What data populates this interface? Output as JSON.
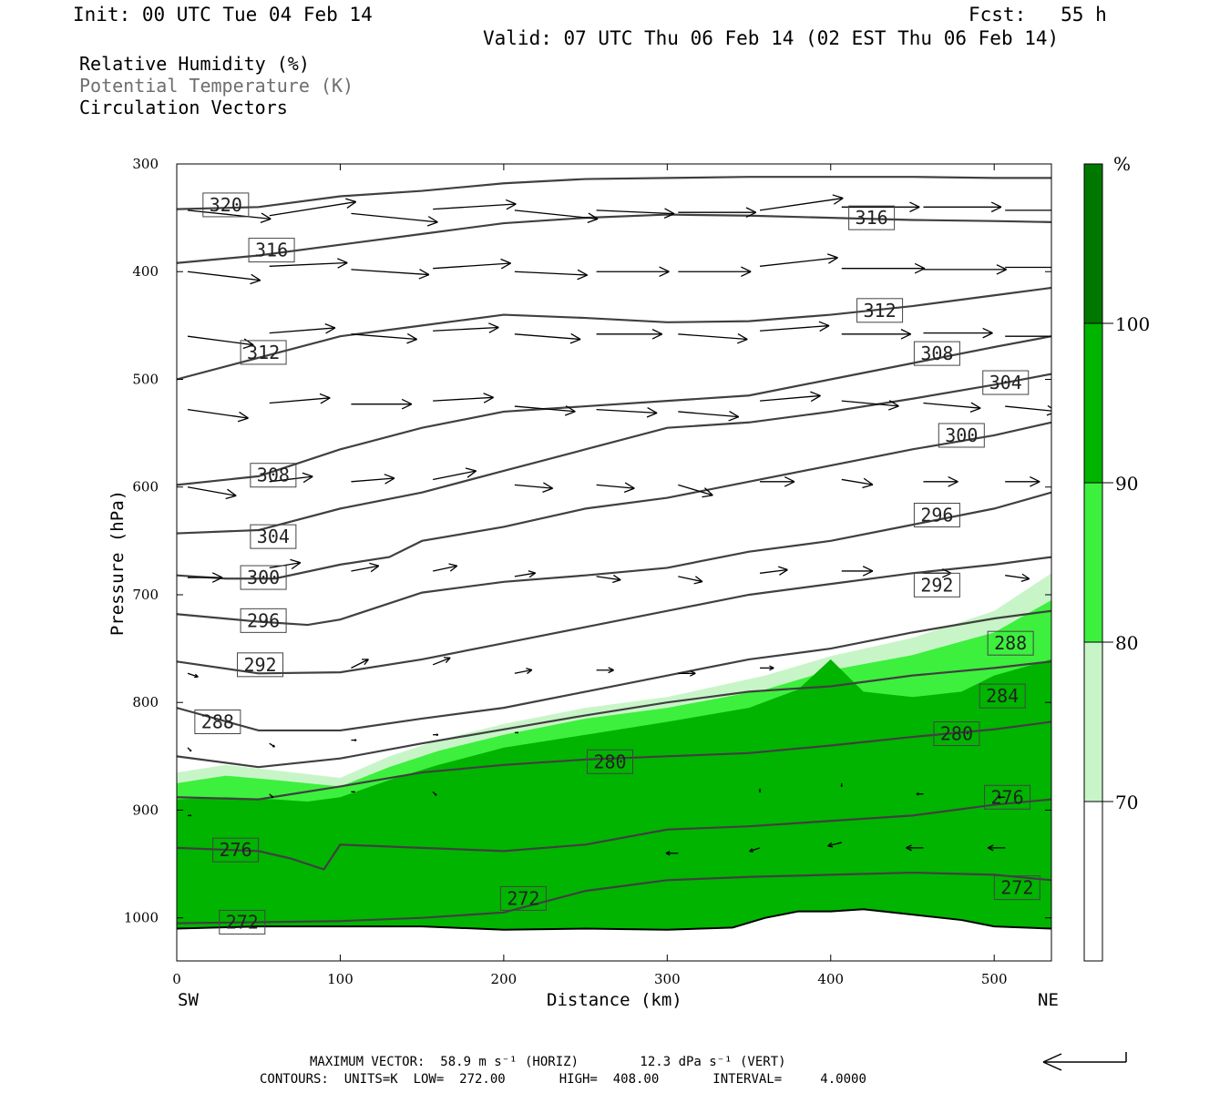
{
  "header": {
    "init": "Init: 00 UTC Tue 04 Feb 14",
    "fcst": "Fcst:   55 h",
    "valid": "Valid: 07 UTC Thu 06 Feb 14 (02 EST Thu 06 Feb 14)"
  },
  "legend": {
    "rh": "Relative Humidity (%)",
    "theta": "Potential Temperature (K)",
    "vectors": "Circulation Vectors"
  },
  "footer": {
    "max_vector": "MAXIMUM VECTOR:  58.9 m s⁻¹ (HORIZ)        12.3 dPa s⁻¹ (VERT)",
    "contours": "CONTOURS:  UNITS=K  LOW=  272.00       HIGH=  408.00       INTERVAL=     4.0000"
  },
  "colors": {
    "rh_70": "#c8f5c8",
    "rh_80": "#3df03d",
    "rh_90": "#00b400",
    "rh_100": "#007800",
    "contour": "#404040"
  },
  "chart_data": {
    "type": "cross-section",
    "xlabel": "Distance (km)",
    "ylabel": "Pressure (hPa)",
    "x_left_label": "SW",
    "x_right_label": "NE",
    "xlim": [
      0,
      535
    ],
    "ylim": [
      1040,
      300
    ],
    "x_ticks": [
      0,
      100,
      200,
      300,
      400,
      500
    ],
    "y_ticks": [
      300,
      400,
      500,
      600,
      700,
      800,
      900,
      1000
    ],
    "colorbar": {
      "unit": "%",
      "levels": [
        70,
        80,
        90,
        100
      ],
      "labels": [
        "100",
        "90",
        "80",
        "70"
      ]
    },
    "ground": {
      "x": [
        0,
        50,
        100,
        150,
        200,
        250,
        300,
        340,
        360,
        380,
        400,
        420,
        450,
        480,
        500,
        535
      ],
      "p": [
        1010,
        1008,
        1008,
        1008,
        1011,
        1010,
        1011,
        1009,
        1000,
        994,
        994,
        992,
        997,
        1002,
        1008,
        1010
      ]
    },
    "rh_regions": [
      {
        "level": 70,
        "x": [
          0,
          30,
          60,
          100,
          130,
          160,
          200,
          250,
          300,
          360,
          400,
          450,
          500,
          535
        ],
        "p": [
          865,
          858,
          863,
          870,
          850,
          835,
          820,
          805,
          795,
          775,
          757,
          740,
          715,
          680
        ]
      },
      {
        "level": 80,
        "x": [
          0,
          30,
          60,
          100,
          130,
          160,
          200,
          250,
          300,
          360,
          400,
          450,
          500,
          535
        ],
        "p": [
          875,
          868,
          872,
          878,
          860,
          845,
          830,
          815,
          805,
          788,
          770,
          756,
          735,
          705
        ]
      },
      {
        "level": 90,
        "x": [
          0,
          30,
          60,
          80,
          100,
          130,
          160,
          200,
          250,
          300,
          350,
          380,
          400,
          420,
          450,
          480,
          500,
          535
        ],
        "p": [
          890,
          888,
          890,
          892,
          888,
          872,
          858,
          842,
          830,
          818,
          805,
          788,
          760,
          790,
          795,
          790,
          775,
          760
        ]
      },
      {
        "level": 90,
        "x": [
          0,
          30,
          60,
          80,
          100,
          130,
          160,
          200,
          250,
          300,
          350,
          380,
          400,
          420,
          450,
          480,
          500,
          535
        ],
        "p": [
          900,
          897,
          900,
          902,
          898,
          882,
          868,
          852,
          840,
          828,
          815,
          798,
          770,
          800,
          805,
          800,
          785,
          770
        ]
      }
    ],
    "theta_contours": [
      {
        "value": 272,
        "x": [
          0,
          50,
          100,
          150,
          200,
          250,
          300,
          350,
          400,
          450,
          500,
          535
        ],
        "p": [
          1005,
          1004,
          1003,
          1000,
          995,
          975,
          965,
          962,
          960,
          958,
          960,
          965
        ]
      },
      {
        "value": 276,
        "x": [
          0,
          50,
          70,
          90,
          100,
          150,
          200,
          250,
          300,
          350,
          400,
          450,
          500,
          535
        ],
        "p": [
          935,
          938,
          945,
          955,
          932,
          935,
          938,
          932,
          918,
          915,
          910,
          905,
          895,
          890
        ]
      },
      {
        "value": 280,
        "x": [
          0,
          50,
          100,
          150,
          200,
          250,
          300,
          350,
          400,
          450,
          500,
          535
        ],
        "p": [
          888,
          890,
          878,
          865,
          858,
          853,
          850,
          847,
          840,
          832,
          825,
          818
        ]
      },
      {
        "value": 284,
        "x": [
          0,
          50,
          100,
          150,
          200,
          250,
          300,
          350,
          400,
          450,
          500,
          535
        ],
        "p": [
          850,
          860,
          852,
          838,
          825,
          812,
          800,
          790,
          785,
          775,
          768,
          762
        ]
      },
      {
        "value": 288,
        "x": [
          0,
          50,
          100,
          150,
          200,
          250,
          300,
          350,
          400,
          450,
          500,
          535
        ],
        "p": [
          805,
          826,
          826,
          815,
          805,
          790,
          775,
          760,
          750,
          735,
          722,
          715
        ]
      },
      {
        "value": 292,
        "x": [
          0,
          50,
          100,
          150,
          200,
          250,
          300,
          350,
          400,
          450,
          500,
          535
        ],
        "p": [
          762,
          773,
          772,
          760,
          745,
          730,
          715,
          700,
          690,
          680,
          672,
          665
        ]
      },
      {
        "value": 296,
        "x": [
          0,
          50,
          80,
          100,
          150,
          200,
          250,
          300,
          350,
          400,
          450,
          500,
          535
        ],
        "p": [
          718,
          725,
          728,
          723,
          698,
          688,
          682,
          675,
          660,
          650,
          635,
          620,
          605
        ]
      },
      {
        "value": 300,
        "x": [
          0,
          30,
          60,
          100,
          130,
          150,
          200,
          250,
          300,
          350,
          400,
          450,
          500,
          535
        ],
        "p": [
          682,
          685,
          685,
          672,
          665,
          650,
          637,
          620,
          610,
          595,
          580,
          565,
          552,
          540
        ]
      },
      {
        "value": 304,
        "x": [
          0,
          50,
          100,
          150,
          200,
          250,
          300,
          350,
          400,
          450,
          500,
          535
        ],
        "p": [
          643,
          640,
          620,
          605,
          585,
          565,
          545,
          540,
          530,
          518,
          505,
          495
        ]
      },
      {
        "value": 308,
        "x": [
          0,
          50,
          100,
          150,
          200,
          250,
          300,
          350,
          400,
          450,
          500,
          535
        ],
        "p": [
          598,
          590,
          565,
          545,
          530,
          525,
          520,
          515,
          500,
          485,
          470,
          460
        ]
      },
      {
        "value": 312,
        "x": [
          0,
          50,
          100,
          150,
          200,
          250,
          300,
          350,
          400,
          450,
          500,
          535
        ],
        "p": [
          500,
          480,
          460,
          450,
          440,
          443,
          447,
          446,
          440,
          432,
          422,
          415
        ]
      },
      {
        "value": 316,
        "x": [
          0,
          50,
          100,
          150,
          200,
          250,
          300,
          350,
          400,
          450,
          500,
          535
        ],
        "p": [
          392,
          385,
          375,
          365,
          355,
          350,
          347,
          348,
          350,
          352,
          353,
          354
        ]
      },
      {
        "value": 320,
        "x": [
          0,
          50,
          100,
          150,
          200,
          250,
          300,
          350,
          400,
          450,
          500,
          535
        ],
        "p": [
          342,
          340,
          330,
          325,
          318,
          314,
          313,
          312,
          312,
          312,
          313,
          313
        ]
      }
    ],
    "contour_labels": [
      {
        "text": "320",
        "x": 30,
        "p": 338
      },
      {
        "text": "316",
        "x": 425,
        "p": 350
      },
      {
        "text": "316",
        "x": 58,
        "p": 380
      },
      {
        "text": "312",
        "x": 430,
        "p": 436
      },
      {
        "text": "312",
        "x": 53,
        "p": 475
      },
      {
        "text": "308",
        "x": 465,
        "p": 476
      },
      {
        "text": "304",
        "x": 507,
        "p": 503
      },
      {
        "text": "300",
        "x": 480,
        "p": 552
      },
      {
        "text": "308",
        "x": 59,
        "p": 589
      },
      {
        "text": "296",
        "x": 465,
        "p": 626
      },
      {
        "text": "304",
        "x": 59,
        "p": 646
      },
      {
        "text": "300",
        "x": 53,
        "p": 684
      },
      {
        "text": "292",
        "x": 465,
        "p": 691
      },
      {
        "text": "296",
        "x": 53,
        "p": 724
      },
      {
        "text": "288",
        "x": 510,
        "p": 745
      },
      {
        "text": "292",
        "x": 51,
        "p": 765
      },
      {
        "text": "284",
        "x": 505,
        "p": 794
      },
      {
        "text": "288",
        "x": 25,
        "p": 818
      },
      {
        "text": "280",
        "x": 477,
        "p": 829
      },
      {
        "text": "280",
        "x": 265,
        "p": 855
      },
      {
        "text": "276",
        "x": 508,
        "p": 888
      },
      {
        "text": "276",
        "x": 36,
        "p": 937
      },
      {
        "text": "272",
        "x": 514,
        "p": 972
      },
      {
        "text": "272",
        "x": 212,
        "p": 982
      },
      {
        "text": "272",
        "x": 40,
        "p": 1004
      }
    ],
    "vectors": [
      {
        "x": 0,
        "p": 343,
        "u": 48,
        "v": 5
      },
      {
        "x": 50,
        "p": 348,
        "u": 50,
        "v": -8
      },
      {
        "x": 100,
        "p": 346,
        "u": 50,
        "v": 5
      },
      {
        "x": 150,
        "p": 342,
        "u": 48,
        "v": -3
      },
      {
        "x": 200,
        "p": 343,
        "u": 48,
        "v": 5
      },
      {
        "x": 250,
        "p": 343,
        "u": 45,
        "v": 2
      },
      {
        "x": 300,
        "p": 345,
        "u": 45,
        "v": 0
      },
      {
        "x": 350,
        "p": 343,
        "u": 48,
        "v": -7
      },
      {
        "x": 400,
        "p": 340,
        "u": 45,
        "v": 0
      },
      {
        "x": 450,
        "p": 340,
        "u": 45,
        "v": 0
      },
      {
        "x": 500,
        "p": 343,
        "u": 45,
        "v": 0
      },
      {
        "x": 0,
        "p": 400,
        "u": 42,
        "v": 5
      },
      {
        "x": 50,
        "p": 395,
        "u": 45,
        "v": -2
      },
      {
        "x": 100,
        "p": 398,
        "u": 45,
        "v": 3
      },
      {
        "x": 150,
        "p": 397,
        "u": 45,
        "v": -3
      },
      {
        "x": 200,
        "p": 400,
        "u": 42,
        "v": 2
      },
      {
        "x": 250,
        "p": 400,
        "u": 42,
        "v": 0
      },
      {
        "x": 300,
        "p": 400,
        "u": 42,
        "v": 0
      },
      {
        "x": 350,
        "p": 395,
        "u": 45,
        "v": -5
      },
      {
        "x": 400,
        "p": 397,
        "u": 48,
        "v": 0
      },
      {
        "x": 450,
        "p": 398,
        "u": 48,
        "v": 0
      },
      {
        "x": 500,
        "p": 396,
        "u": 45,
        "v": 0
      },
      {
        "x": 0,
        "p": 460,
        "u": 38,
        "v": 5
      },
      {
        "x": 50,
        "p": 457,
        "u": 38,
        "v": -3
      },
      {
        "x": 100,
        "p": 458,
        "u": 38,
        "v": 3
      },
      {
        "x": 150,
        "p": 455,
        "u": 38,
        "v": -2
      },
      {
        "x": 200,
        "p": 458,
        "u": 38,
        "v": 3
      },
      {
        "x": 250,
        "p": 458,
        "u": 38,
        "v": 0
      },
      {
        "x": 300,
        "p": 458,
        "u": 40,
        "v": 3
      },
      {
        "x": 350,
        "p": 455,
        "u": 40,
        "v": -3
      },
      {
        "x": 400,
        "p": 458,
        "u": 40,
        "v": 0
      },
      {
        "x": 450,
        "p": 457,
        "u": 40,
        "v": 0
      },
      {
        "x": 500,
        "p": 460,
        "u": 35,
        "v": 0
      },
      {
        "x": 0,
        "p": 528,
        "u": 35,
        "v": 5
      },
      {
        "x": 50,
        "p": 522,
        "u": 35,
        "v": -3
      },
      {
        "x": 100,
        "p": 523,
        "u": 35,
        "v": 0
      },
      {
        "x": 150,
        "p": 520,
        "u": 35,
        "v": -2
      },
      {
        "x": 200,
        "p": 525,
        "u": 35,
        "v": 3
      },
      {
        "x": 250,
        "p": 528,
        "u": 35,
        "v": 2
      },
      {
        "x": 300,
        "p": 530,
        "u": 35,
        "v": 3
      },
      {
        "x": 350,
        "p": 520,
        "u": 35,
        "v": -3
      },
      {
        "x": 400,
        "p": 520,
        "u": 33,
        "v": 3
      },
      {
        "x": 450,
        "p": 522,
        "u": 33,
        "v": 3
      },
      {
        "x": 500,
        "p": 525,
        "u": 30,
        "v": 3
      },
      {
        "x": 0,
        "p": 600,
        "u": 28,
        "v": 5
      },
      {
        "x": 50,
        "p": 595,
        "u": 25,
        "v": -3
      },
      {
        "x": 100,
        "p": 595,
        "u": 25,
        "v": -2
      },
      {
        "x": 150,
        "p": 593,
        "u": 25,
        "v": -5
      },
      {
        "x": 200,
        "p": 598,
        "u": 22,
        "v": 2
      },
      {
        "x": 250,
        "p": 598,
        "u": 22,
        "v": 2
      },
      {
        "x": 300,
        "p": 598,
        "u": 20,
        "v": 6
      },
      {
        "x": 350,
        "p": 595,
        "u": 20,
        "v": 0
      },
      {
        "x": 400,
        "p": 593,
        "u": 18,
        "v": 3
      },
      {
        "x": 450,
        "p": 595,
        "u": 20,
        "v": 0
      },
      {
        "x": 500,
        "p": 595,
        "u": 20,
        "v": 0
      },
      {
        "x": 0,
        "p": 684,
        "u": 20,
        "v": 0
      },
      {
        "x": 50,
        "p": 675,
        "u": 18,
        "v": -3
      },
      {
        "x": 100,
        "p": 678,
        "u": 16,
        "v": -3
      },
      {
        "x": 150,
        "p": 678,
        "u": 14,
        "v": -3
      },
      {
        "x": 200,
        "p": 683,
        "u": 12,
        "v": -2
      },
      {
        "x": 250,
        "p": 683,
        "u": 14,
        "v": 2
      },
      {
        "x": 300,
        "p": 683,
        "u": 14,
        "v": 3
      },
      {
        "x": 350,
        "p": 680,
        "u": 16,
        "v": -2
      },
      {
        "x": 400,
        "p": 678,
        "u": 18,
        "v": 0
      },
      {
        "x": 450,
        "p": 680,
        "u": 16,
        "v": 0
      },
      {
        "x": 500,
        "p": 682,
        "u": 14,
        "v": 2
      },
      {
        "x": 0,
        "p": 773,
        "u": 6,
        "v": 2
      },
      {
        "x": 100,
        "p": 768,
        "u": 10,
        "v": -5
      },
      {
        "x": 150,
        "p": 765,
        "u": 10,
        "v": -4
      },
      {
        "x": 200,
        "p": 773,
        "u": 10,
        "v": -2
      },
      {
        "x": 250,
        "p": 770,
        "u": 10,
        "v": 0
      },
      {
        "x": 300,
        "p": 773,
        "u": 10,
        "v": 0
      },
      {
        "x": 350,
        "p": 768,
        "u": 8,
        "v": 0
      },
      {
        "x": 0,
        "p": 842,
        "u": 2,
        "v": 2
      },
      {
        "x": 50,
        "p": 838,
        "u": 3,
        "v": 2
      },
      {
        "x": 100,
        "p": 835,
        "u": 3,
        "v": 0
      },
      {
        "x": 150,
        "p": 830,
        "u": 3,
        "v": 0
      },
      {
        "x": 200,
        "p": 828,
        "u": 2,
        "v": 0
      },
      {
        "x": 0,
        "p": 905,
        "u": 2,
        "v": 0
      },
      {
        "x": 50,
        "p": 885,
        "u": 2,
        "v": 2
      },
      {
        "x": 100,
        "p": 883,
        "u": 2,
        "v": 0
      },
      {
        "x": 150,
        "p": 883,
        "u": 2,
        "v": 2
      },
      {
        "x": 350,
        "p": 880,
        "u": 0,
        "v": 2
      },
      {
        "x": 400,
        "p": 875,
        "u": 0,
        "v": 2
      },
      {
        "x": 450,
        "p": 885,
        "u": -4,
        "v": 0
      },
      {
        "x": 500,
        "p": 888,
        "u": -4,
        "v": 0
      },
      {
        "x": 300,
        "p": 940,
        "u": -7,
        "v": 0
      },
      {
        "x": 350,
        "p": 935,
        "u": -6,
        "v": 2
      },
      {
        "x": 400,
        "p": 930,
        "u": -8,
        "v": 2
      },
      {
        "x": 450,
        "p": 935,
        "u": -10,
        "v": 0
      },
      {
        "x": 500,
        "p": 935,
        "u": -10,
        "v": 0
      }
    ],
    "vector_scale_label": ""
  }
}
